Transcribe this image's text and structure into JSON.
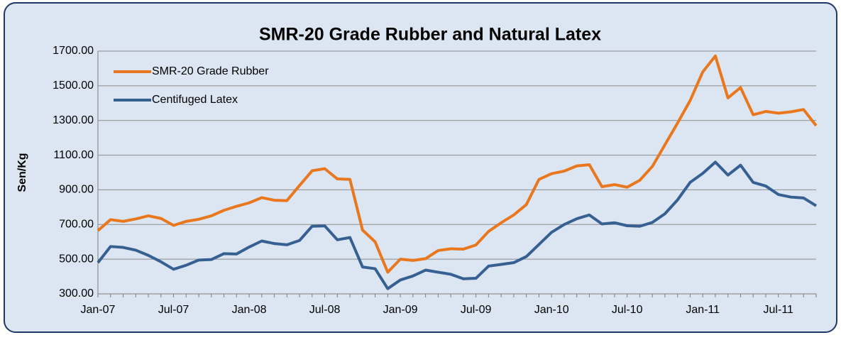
{
  "chart_data": {
    "type": "line",
    "title": "SMR-20 Grade Rubber and Natural Latex",
    "y_label": "Sen/Kg",
    "categories": [
      "Jan-07",
      null,
      null,
      null,
      null,
      null,
      "Jul-07",
      null,
      null,
      null,
      null,
      null,
      "Jan-08",
      null,
      null,
      null,
      null,
      null,
      "Jul-08",
      null,
      null,
      null,
      null,
      null,
      "Jan-09",
      null,
      null,
      null,
      null,
      null,
      "Jul-09",
      null,
      null,
      null,
      null,
      null,
      "Jan-10",
      null,
      null,
      null,
      null,
      null,
      "Jul-10",
      null,
      null,
      null,
      null,
      null,
      "Jan-11",
      null,
      null,
      null,
      null,
      null,
      "Jul-11",
      null,
      null,
      null
    ],
    "series": [
      {
        "name": "SMR-20 Grade Rubber",
        "color": "#e8771e",
        "values": [
          665,
          728,
          718,
          732,
          750,
          735,
          695,
          718,
          730,
          750,
          782,
          805,
          825,
          855,
          840,
          838,
          925,
          1010,
          1022,
          963,
          960,
          668,
          600,
          425,
          500,
          493,
          503,
          550,
          560,
          558,
          582,
          660,
          710,
          755,
          815,
          960,
          993,
          1008,
          1038,
          1045,
          918,
          930,
          915,
          955,
          1035,
          1160,
          1285,
          1415,
          1580,
          1672,
          1430,
          1490,
          1333,
          1352,
          1342,
          1350,
          1363,
          1270
        ]
      },
      {
        "name": "Centifuged Latex",
        "color": "#376092",
        "values": [
          480,
          573,
          568,
          552,
          522,
          485,
          442,
          465,
          495,
          498,
          532,
          530,
          570,
          605,
          590,
          583,
          608,
          690,
          692,
          612,
          625,
          455,
          445,
          330,
          380,
          403,
          437,
          425,
          413,
          387,
          390,
          460,
          470,
          480,
          515,
          585,
          655,
          700,
          733,
          755,
          703,
          710,
          693,
          690,
          712,
          762,
          842,
          943,
          995,
          1060,
          985,
          1042,
          943,
          922,
          873,
          858,
          853,
          808
        ]
      }
    ],
    "ylim": [
      300,
      1700
    ],
    "yticks": [
      {
        "value": 300,
        "label": "300.00"
      },
      {
        "value": 500,
        "label": "500.00"
      },
      {
        "value": 700,
        "label": "700.00"
      },
      {
        "value": 900,
        "label": "900.00"
      },
      {
        "value": 1100,
        "label": "1100.00"
      },
      {
        "value": 1300,
        "label": "1300.00"
      },
      {
        "value": 1500,
        "label": "1500.00"
      },
      {
        "value": 1700,
        "label": "1700.00"
      }
    ],
    "grid": true,
    "legend": "top-left"
  }
}
